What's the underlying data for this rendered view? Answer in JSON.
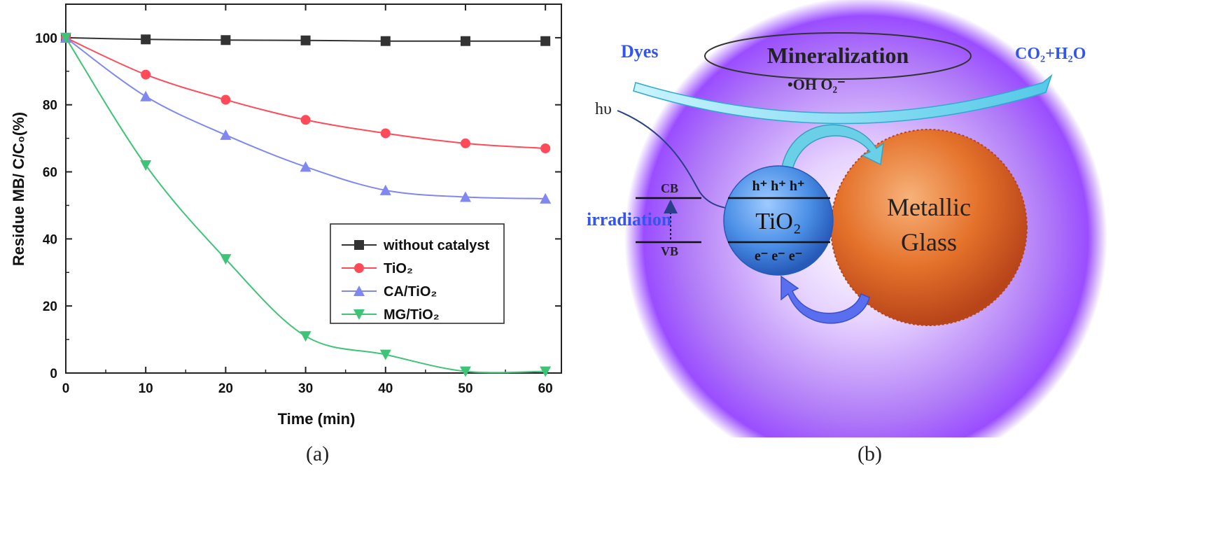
{
  "chart_data": {
    "type": "line",
    "xlabel": "Time (min)",
    "ylabel": "Residue MB/ C/C₀(%)",
    "xlim": [
      0,
      62
    ],
    "ylim": [
      0,
      110
    ],
    "xticks": [
      0,
      10,
      20,
      30,
      40,
      50,
      60
    ],
    "yticks": [
      0,
      20,
      40,
      60,
      80,
      100
    ],
    "x": [
      0,
      10,
      20,
      30,
      40,
      50,
      60
    ],
    "series": [
      {
        "name": "without catalyst",
        "color": "#333333",
        "marker": "square",
        "values": [
          100,
          99.5,
          99.3,
          99.2,
          99,
          99,
          99
        ]
      },
      {
        "name": "TiO₂",
        "color": "#ff4a5a",
        "marker": "circle",
        "values": [
          100,
          89,
          81.5,
          75.5,
          71.5,
          68.5,
          67
        ]
      },
      {
        "name": "CA/TiO₂",
        "color": "#8088f0",
        "marker": "triangle-up",
        "values": [
          100,
          82.5,
          71,
          61.5,
          54.5,
          52.5,
          52
        ]
      },
      {
        "name": "MG/TiO₂",
        "color": "#3dc477",
        "marker": "triangle-down",
        "values": [
          100,
          62,
          34,
          11,
          5.5,
          0.5,
          0.5
        ]
      }
    ],
    "legend_position": "center-right",
    "grid": false
  },
  "captions": {
    "a": "(a)",
    "b": "(b)"
  },
  "diagram": {
    "dyes": "Dyes",
    "mineralization": "Mineralization",
    "radicals": "•OH   O₂⁻",
    "products": "CO₂+H₂O",
    "hv": "hυ",
    "irradiation": "irradiation",
    "cb": "CB",
    "vb": "VB",
    "holes": "h⁺  h⁺  h⁺",
    "tio2": "TiO₂",
    "electrons": "e⁻  e⁻  e⁻",
    "metallic": "Metallic",
    "glass": "Glass"
  },
  "colors": {
    "glow": "#9a4dff",
    "sphere_orange": "#e4712a",
    "sphere_blue": "#4a8fe6",
    "label_blue": "#3355ee"
  }
}
